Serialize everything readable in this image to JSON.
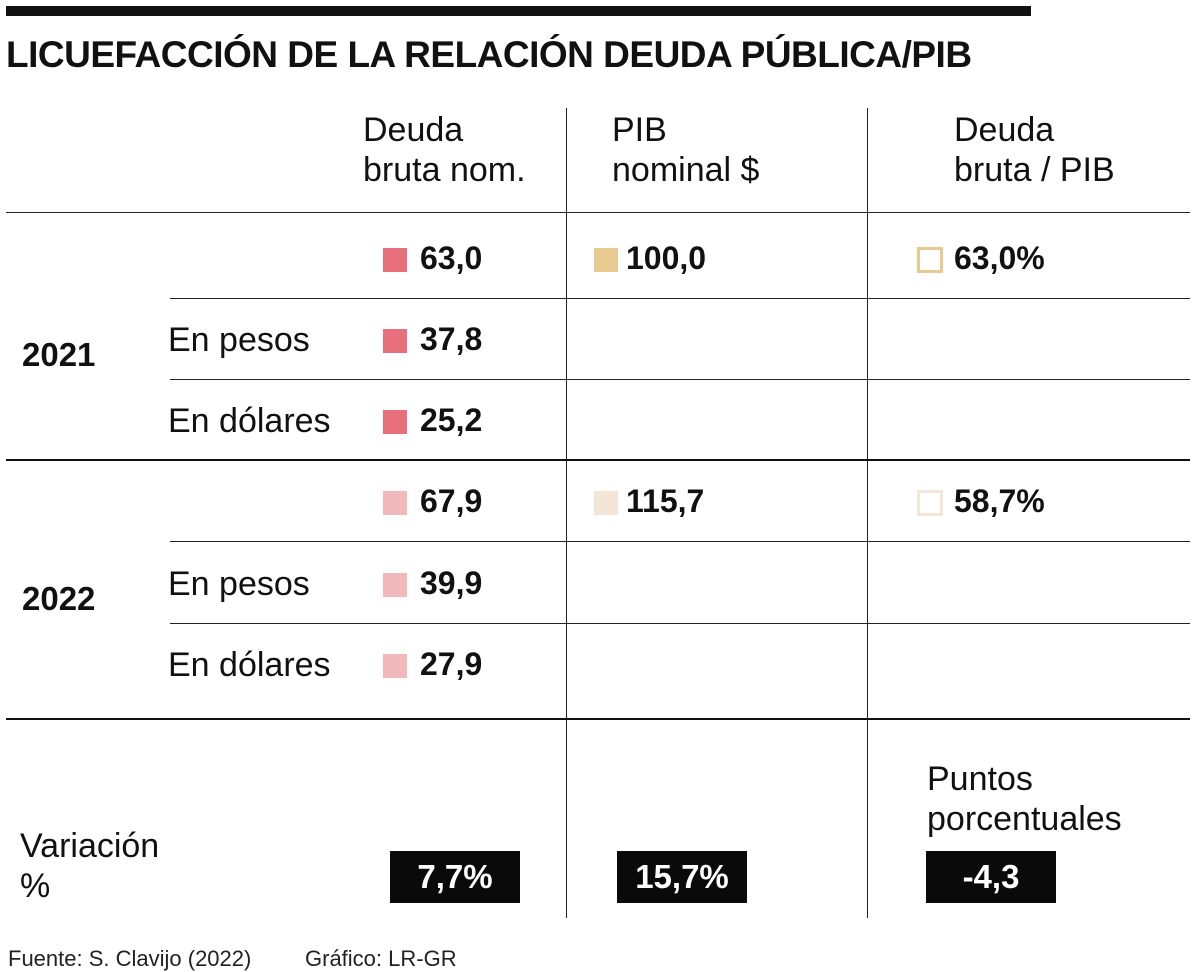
{
  "title": "LICUEFACCIÓN DE LA RELACIÓN DEUDA PÚBLICA/PIB",
  "columns": {
    "deuda": "Deuda\nbruta nom.",
    "pib": "PIB\nnominal $",
    "ratio": "Deuda\nbruta / PIB"
  },
  "row_labels": {
    "pesos": "En pesos",
    "dolares": "En dólares"
  },
  "colors": {
    "deuda_2021": "#e8707c",
    "pib_2021": "#e8c98f",
    "deuda_2022": "#f2b9bd",
    "pib_2022": "#f4e6d6"
  },
  "years": [
    {
      "year": "2021",
      "deuda_total": "63,0",
      "pib": "100,0",
      "ratio": "63,0%",
      "deuda_pesos": "37,8",
      "deuda_dolares": "25,2"
    },
    {
      "year": "2022",
      "deuda_total": "67,9",
      "pib": "115,7",
      "ratio": "58,7%",
      "deuda_pesos": "39,9",
      "deuda_dolares": "27,9"
    }
  ],
  "variation": {
    "label": "Variación\n%",
    "deuda": "7,7%",
    "pib": "15,7%",
    "ratio_note": "Puntos\nporcentuales",
    "ratio": "-4,3"
  },
  "footer": {
    "source": "Fuente:  S. Clavijo (2022)",
    "graphic": "Gráfico: LR-GR"
  }
}
